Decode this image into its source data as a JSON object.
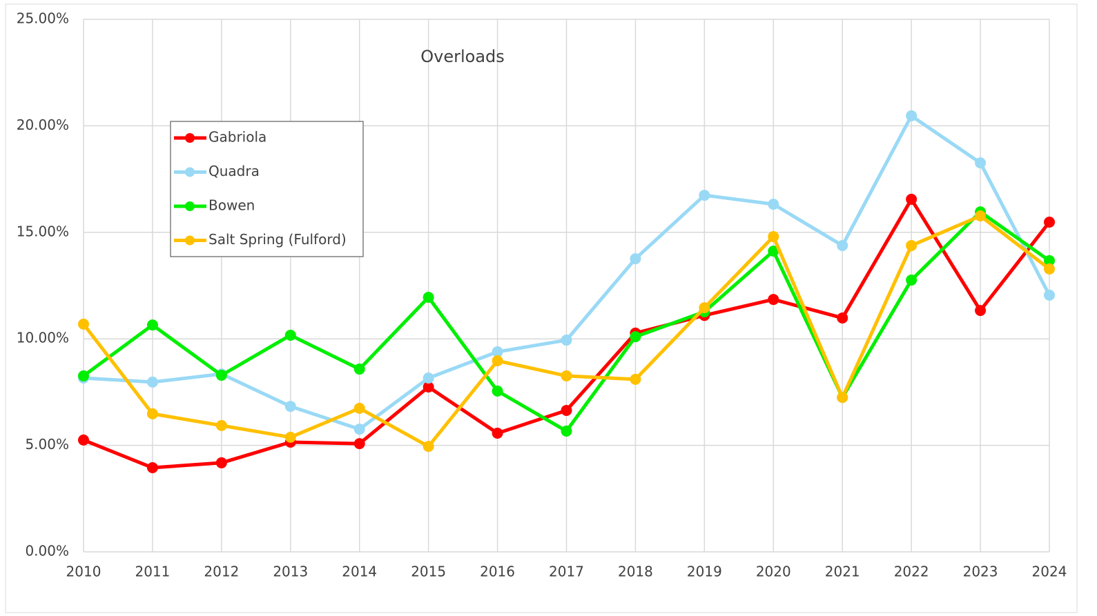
{
  "chart_data": {
    "type": "line",
    "title": "Overloads",
    "x": [
      2010,
      2011,
      2012,
      2013,
      2014,
      2015,
      2016,
      2017,
      2018,
      2019,
      2020,
      2021,
      2022,
      2023,
      2024
    ],
    "xlim": [
      2010,
      2024
    ],
    "xticks": [
      2010,
      2011,
      2012,
      2013,
      2014,
      2015,
      2016,
      2017,
      2018,
      2019,
      2020,
      2021,
      2022,
      2023,
      2024
    ],
    "ylim": [
      0,
      25
    ],
    "yticks": [
      {
        "value": 0,
        "label": "0.00%"
      },
      {
        "value": 5,
        "label": "5.00%"
      },
      {
        "value": 10,
        "label": "10.00%"
      },
      {
        "value": 15,
        "label": "15.00%"
      },
      {
        "value": 20,
        "label": "20.00%"
      },
      {
        "value": 25,
        "label": "25.00%"
      }
    ],
    "grid": true,
    "legend": "upper left",
    "series": [
      {
        "name": "Gabriola",
        "color": "#ff0000",
        "values": [
          5.25,
          3.95,
          4.18,
          5.15,
          5.08,
          7.74,
          5.57,
          6.64,
          10.27,
          11.1,
          11.85,
          10.98,
          16.55,
          11.33,
          15.48
        ]
      },
      {
        "name": "Quadra",
        "color": "#99d9f5",
        "values": [
          8.16,
          7.97,
          8.35,
          6.83,
          5.76,
          8.16,
          9.39,
          9.94,
          13.76,
          16.74,
          16.32,
          14.38,
          20.47,
          18.26,
          12.05
        ]
      },
      {
        "name": "Bowen",
        "color": "#00ee00",
        "values": [
          8.26,
          10.65,
          8.29,
          10.17,
          8.58,
          11.95,
          7.55,
          5.67,
          10.1,
          11.27,
          14.12,
          7.25,
          12.76,
          15.96,
          13.67
        ]
      },
      {
        "name": "Salt Spring (Fulford)",
        "color": "#ffc000",
        "values": [
          10.69,
          6.48,
          5.93,
          5.38,
          6.74,
          4.95,
          8.97,
          8.26,
          8.1,
          11.46,
          14.8,
          7.25,
          14.38,
          15.77,
          13.28
        ]
      }
    ]
  }
}
